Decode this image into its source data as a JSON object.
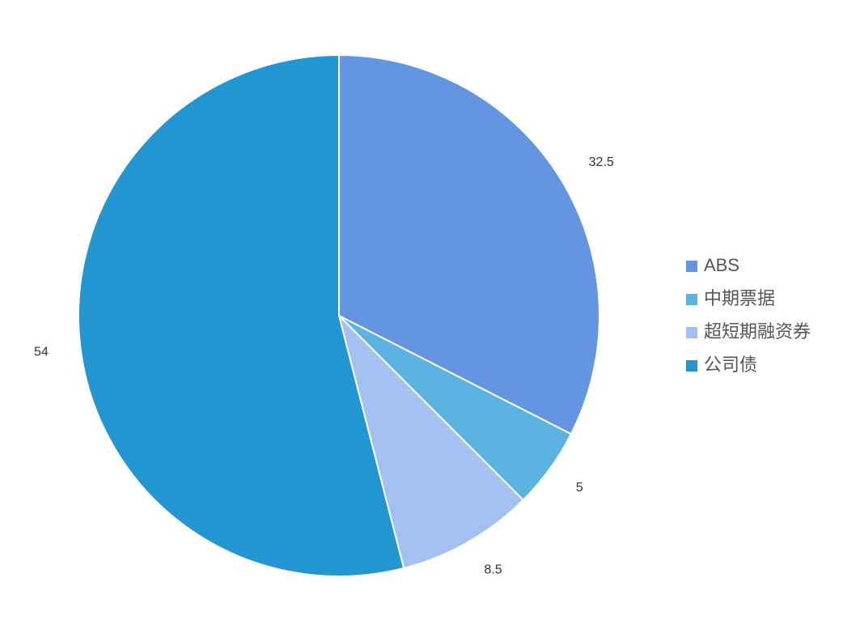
{
  "chart_data": {
    "type": "pie",
    "categories": [
      "ABS",
      "中期票据",
      "超短期融资券",
      "公司债"
    ],
    "values": [
      32.5,
      5,
      8.5,
      54
    ],
    "colors": [
      "#6495e3",
      "#5ab3e2",
      "#a4bff2",
      "#2196d0"
    ],
    "legend": "right"
  }
}
